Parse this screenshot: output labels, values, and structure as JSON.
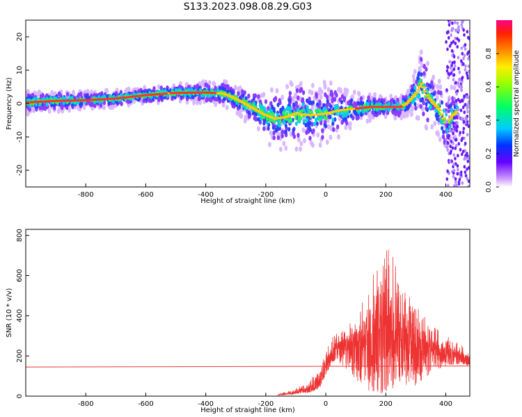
{
  "title": "S133.2023.098.08.29.G03",
  "chart_data": [
    {
      "type": "heatmap",
      "xlabel": "Height of straight line (km)",
      "ylabel": "Frequency (Hz)",
      "xlim": [
        -1000,
        480
      ],
      "ylim": [
        -25,
        25
      ],
      "xticks": [
        -800,
        -600,
        -400,
        -200,
        0,
        200,
        400
      ],
      "yticks": [
        20,
        10,
        0,
        -10,
        -20
      ],
      "colorbar": {
        "label": "Normalized spectral amplitude",
        "range": [
          0,
          1
        ],
        "ticks": [
          "0.0",
          "0.2",
          "0.4",
          "0.6",
          "0.8"
        ]
      },
      "ridge": {
        "x": [
          -1000,
          -900,
          -800,
          -700,
          -600,
          -500,
          -400,
          -340,
          -300,
          -250,
          -200,
          -170,
          -130,
          -100,
          -50,
          0,
          50,
          100,
          150,
          200,
          250,
          270,
          300,
          320,
          340,
          360,
          380,
          400,
          420,
          440
        ],
        "y": [
          0.3,
          0.8,
          1.0,
          1.5,
          2.5,
          3.2,
          3.3,
          3.0,
          1.5,
          -1.0,
          -3.5,
          -4.5,
          -4.0,
          -3.0,
          -3.5,
          -3.0,
          -2.0,
          -1.5,
          -1.0,
          -1.0,
          -1.0,
          0.0,
          3.0,
          6.0,
          2.0,
          0.0,
          -2.0,
          -6.0,
          -4.0,
          -2.0
        ]
      },
      "spread": {
        "x": [
          -1000,
          -800,
          -600,
          -450,
          -300,
          -200,
          -100,
          0,
          100,
          200,
          280,
          320,
          360,
          400,
          440
        ],
        "y": [
          3.5,
          2.8,
          2.5,
          3.0,
          4.0,
          8.0,
          11.0,
          10.0,
          5.0,
          3.0,
          4.0,
          12.0,
          8.0,
          10.0,
          8.0
        ]
      }
    },
    {
      "type": "line",
      "xlabel": "Height of straight line (km)",
      "ylabel": "SNR (10 * v/v)",
      "xlim": [
        -1000,
        480
      ],
      "ylim": [
        0,
        830
      ],
      "xticks": [
        -800,
        -600,
        -400,
        -200,
        0,
        200,
        400
      ],
      "yticks": [
        800,
        600,
        400,
        200,
        0
      ],
      "color": "#ee3333",
      "flat_line": {
        "x": [
          -1000,
          480
        ],
        "y": [
          145,
          150
        ]
      },
      "envelope": {
        "x": [
          -160,
          -100,
          -50,
          -20,
          0,
          20,
          50,
          100,
          150,
          200,
          250,
          300,
          350,
          400,
          450,
          480
        ],
        "base": [
          5,
          15,
          30,
          60,
          120,
          180,
          230,
          240,
          230,
          240,
          230,
          230,
          220,
          200,
          180,
          160
        ],
        "peak": [
          10,
          40,
          80,
          170,
          250,
          300,
          330,
          400,
          580,
          820,
          560,
          450,
          360,
          300,
          260,
          230
        ],
        "low": [
          5,
          10,
          20,
          40,
          100,
          170,
          160,
          80,
          20,
          10,
          60,
          50,
          110,
          150,
          160,
          150
        ]
      }
    }
  ]
}
